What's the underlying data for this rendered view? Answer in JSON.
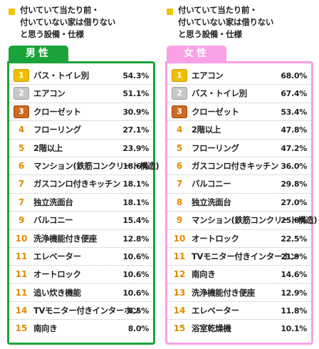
{
  "colors": {
    "male": "#1aa33a",
    "female": "#f9a0e6",
    "rank_number": "#e08a00",
    "bullet": "#f2c200"
  },
  "icons": {
    "rank_top3": "medal-icon"
  },
  "chart_data": [
    {
      "type": "table",
      "title": "付いていて当たり前・\n付いていない家は借りない\nと思う設備・仕様",
      "group": "男性",
      "rows": [
        {
          "rank": "1",
          "label": "バス・トイレ別",
          "value": 54.3,
          "value_label": "54.3%"
        },
        {
          "rank": "2",
          "label": "エアコン",
          "value": 51.1,
          "value_label": "51.1%"
        },
        {
          "rank": "3",
          "label": "クローゼット",
          "value": 30.9,
          "value_label": "30.9%"
        },
        {
          "rank": "4",
          "label": "フローリング",
          "value": 27.1,
          "value_label": "27.1%"
        },
        {
          "rank": "5",
          "label": "2階以上",
          "value": 23.9,
          "value_label": "23.9%"
        },
        {
          "rank": "6",
          "label": "マンション(鉄筋コンクリート構造)",
          "value": 18.6,
          "value_label": "18.6%"
        },
        {
          "rank": "7",
          "label": "ガスコンロ付きキッチン",
          "value": 18.1,
          "value_label": "18.1%"
        },
        {
          "rank": "7",
          "label": "独立洗面台",
          "value": 18.1,
          "value_label": "18.1%"
        },
        {
          "rank": "9",
          "label": "バルコニー",
          "value": 15.4,
          "value_label": "15.4%"
        },
        {
          "rank": "10",
          "label": "洗浄機能付き便座",
          "value": 12.8,
          "value_label": "12.8%"
        },
        {
          "rank": "11",
          "label": "エレベーター",
          "value": 10.6,
          "value_label": "10.6%"
        },
        {
          "rank": "11",
          "label": "オートロック",
          "value": 10.6,
          "value_label": "10.6%"
        },
        {
          "rank": "11",
          "label": "追い炊き機能",
          "value": 10.6,
          "value_label": "10.6%"
        },
        {
          "rank": "14",
          "label": "TVモニター付きインターホン",
          "value": 8.5,
          "value_label": "8.5%"
        },
        {
          "rank": "15",
          "label": "南向き",
          "value": 8.0,
          "value_label": "8.0%"
        }
      ]
    },
    {
      "type": "table",
      "title": "付いていて当たり前・\n付いていない家は借りない\nと思う設備・仕様",
      "group": "女性",
      "rows": [
        {
          "rank": "1",
          "label": "エアコン",
          "value": 68.0,
          "value_label": "68.0%"
        },
        {
          "rank": "2",
          "label": "バス・トイレ別",
          "value": 67.4,
          "value_label": "67.4%"
        },
        {
          "rank": "3",
          "label": "クローゼット",
          "value": 53.4,
          "value_label": "53.4%"
        },
        {
          "rank": "4",
          "label": "2階以上",
          "value": 47.8,
          "value_label": "47.8%"
        },
        {
          "rank": "5",
          "label": "フローリング",
          "value": 47.2,
          "value_label": "47.2%"
        },
        {
          "rank": "6",
          "label": "ガスコンロ付きキッチン",
          "value": 36.0,
          "value_label": "36.0%"
        },
        {
          "rank": "7",
          "label": "バルコニー",
          "value": 29.8,
          "value_label": "29.8%"
        },
        {
          "rank": "8",
          "label": "独立洗面台",
          "value": 27.0,
          "value_label": "27.0%"
        },
        {
          "rank": "9",
          "label": "マンション(鉄筋コンクリート構造)",
          "value": 25.8,
          "value_label": "25.8%"
        },
        {
          "rank": "10",
          "label": "オートロック",
          "value": 22.5,
          "value_label": "22.5%"
        },
        {
          "rank": "11",
          "label": "TVモニター付きインターホン",
          "value": 21.9,
          "value_label": "21.9%"
        },
        {
          "rank": "12",
          "label": "南向き",
          "value": 14.6,
          "value_label": "14.6%"
        },
        {
          "rank": "13",
          "label": "洗浄機能付き便座",
          "value": 12.9,
          "value_label": "12.9%"
        },
        {
          "rank": "14",
          "label": "エレベーター",
          "value": 11.8,
          "value_label": "11.8%"
        },
        {
          "rank": "15",
          "label": "浴室乾燥機",
          "value": 10.1,
          "value_label": "10.1%"
        }
      ]
    }
  ]
}
